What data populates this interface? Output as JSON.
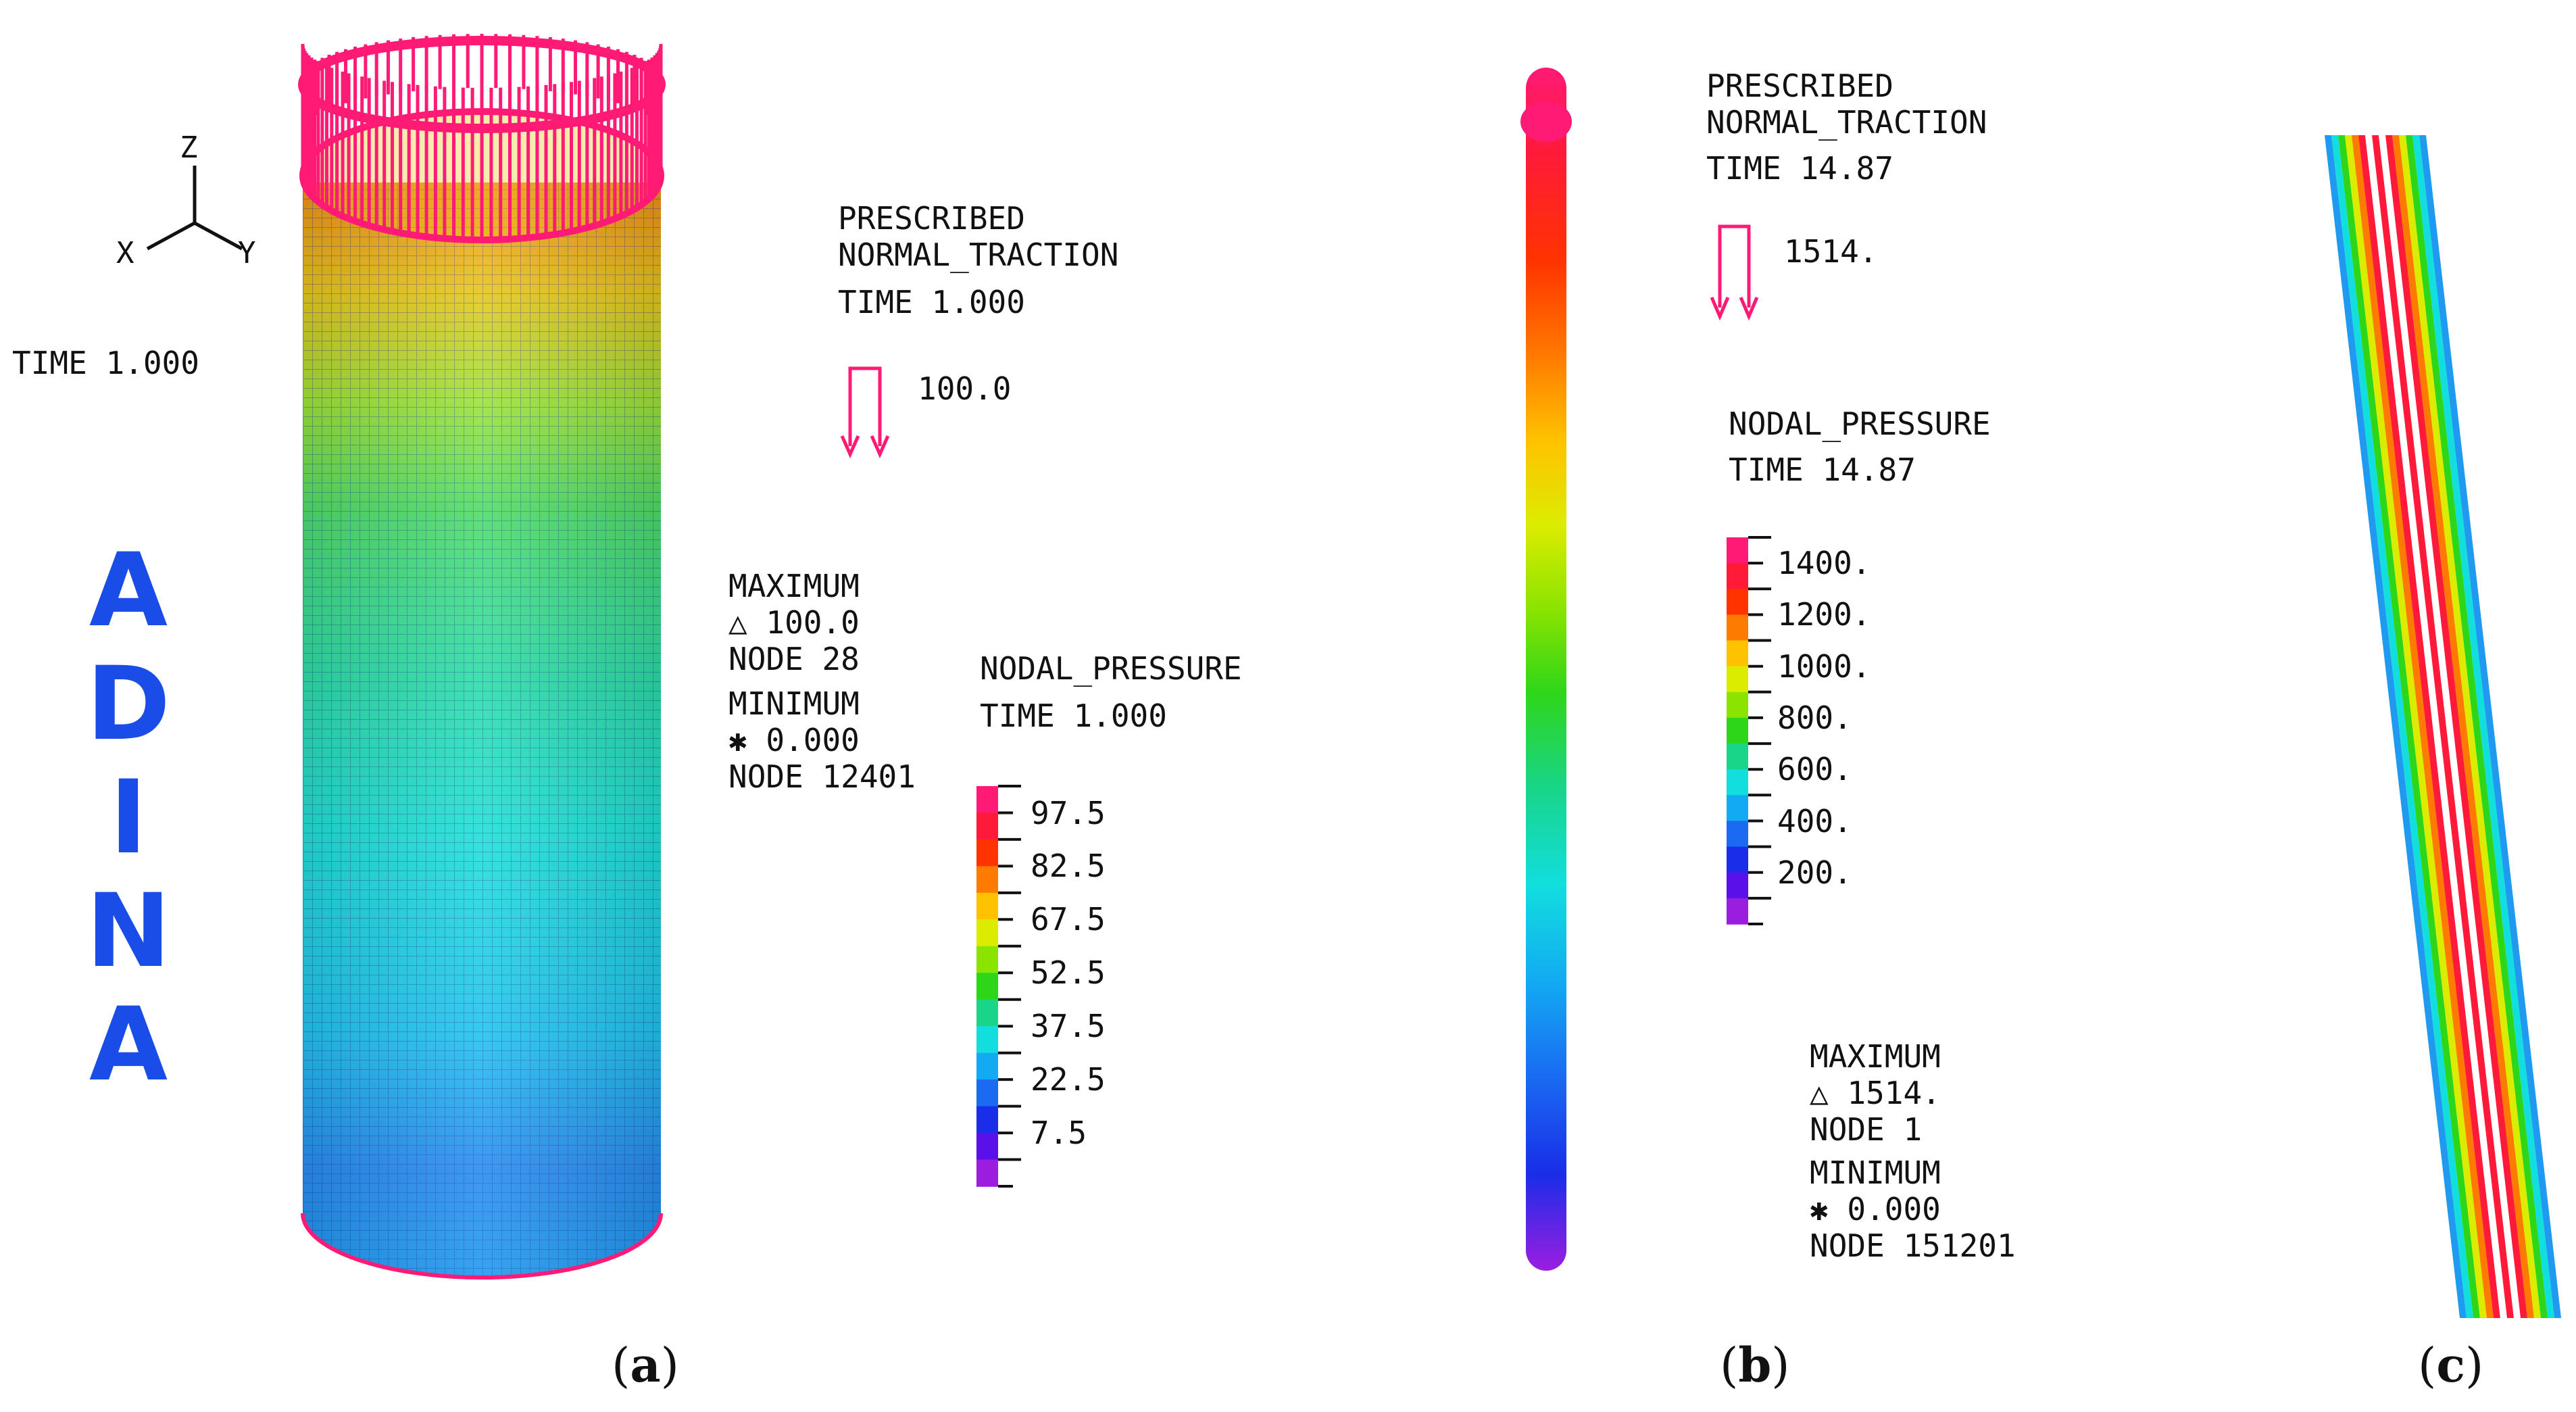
{
  "panel_a": {
    "axes": {
      "z": "Z",
      "x": "X",
      "y": "Y"
    },
    "time_label": "TIME 1.000",
    "logo_letters": [
      "A",
      "D",
      "I",
      "N",
      "A"
    ],
    "prescribed": {
      "line1": "PRESCRIBED",
      "line2": "NORMAL_TRACTION",
      "time": "TIME 1.000",
      "value": "100.0"
    },
    "extremes": {
      "max_title": "MAXIMUM",
      "max_value": "△ 100.0",
      "max_node": "NODE 28",
      "min_title": "MINIMUM",
      "min_value": "✱ 0.000",
      "min_node": "NODE 12401"
    },
    "legend": {
      "title": "NODAL_PRESSURE",
      "time": "TIME 1.000",
      "ticks": [
        "97.5",
        "82.5",
        "67.5",
        "52.5",
        "37.5",
        "22.5",
        "7.5"
      ]
    },
    "caption": "a"
  },
  "panel_b": {
    "prescribed": {
      "line1": "PRESCRIBED",
      "line2": "NORMAL_TRACTION",
      "time": "TIME 14.87",
      "value": "1514."
    },
    "legend": {
      "title": "NODAL_PRESSURE",
      "time": "TIME 14.87",
      "ticks": [
        "1400.",
        "1200.",
        "1000.",
        "800.",
        "600.",
        "400.",
        "200."
      ]
    },
    "extremes": {
      "max_title": "MAXIMUM",
      "max_value": "△ 1514.",
      "max_node": "NODE 1",
      "min_title": "MINIMUM",
      "min_value": "✱ 0.000",
      "min_node": "NODE 151201"
    },
    "caption": "b"
  },
  "panel_c": {
    "caption": "c"
  },
  "colors": {
    "magenta": "#ff1a75",
    "scale": [
      "#ff1a75",
      "#ff1a3a",
      "#ff3300",
      "#ff7a00",
      "#ffc200",
      "#dcec00",
      "#8be300",
      "#2ed61a",
      "#18d58a",
      "#12dede",
      "#12aaf2",
      "#1a6af2",
      "#1a2de8",
      "#5a10e8",
      "#9b1ee0"
    ],
    "logo": "#1a4de8"
  }
}
